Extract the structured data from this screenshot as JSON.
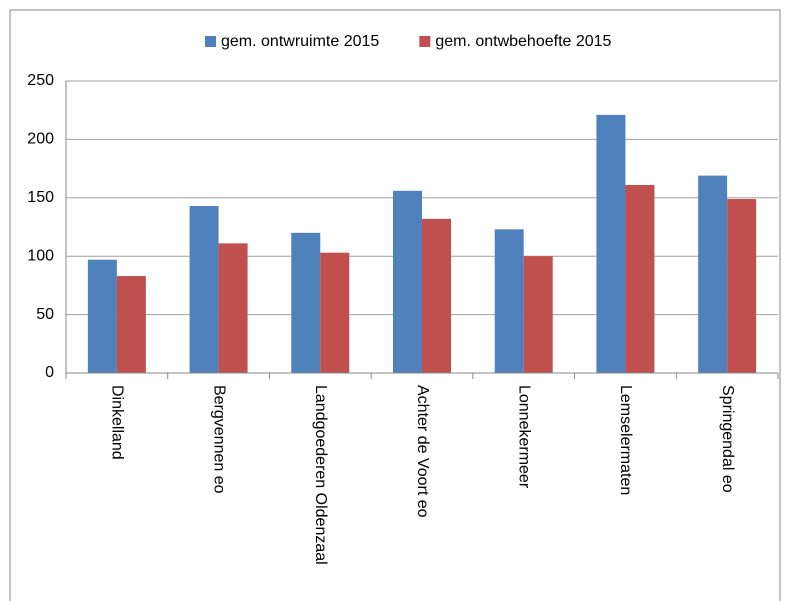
{
  "chart_data": {
    "type": "bar",
    "categories": [
      "Dinkelland",
      "Bergvennen eo",
      "Landgoederen Oldenzaal",
      "Achter de Voort eo",
      "Lonnekermeer",
      "Lemselermaten",
      "Springendal eo"
    ],
    "series": [
      {
        "name": "gem. ontwruimte 2015",
        "color": "#4f81bd",
        "values": [
          97,
          143,
          120,
          156,
          123,
          221,
          169
        ]
      },
      {
        "name": "gem. ontwbehoefte 2015",
        "color": "#c0504d",
        "values": [
          83,
          111,
          103,
          132,
          100,
          161,
          149
        ]
      }
    ],
    "ylim": [
      0,
      250
    ],
    "yticks": [
      0,
      50,
      100,
      150,
      200,
      250
    ],
    "grid": true,
    "legend": "top"
  }
}
